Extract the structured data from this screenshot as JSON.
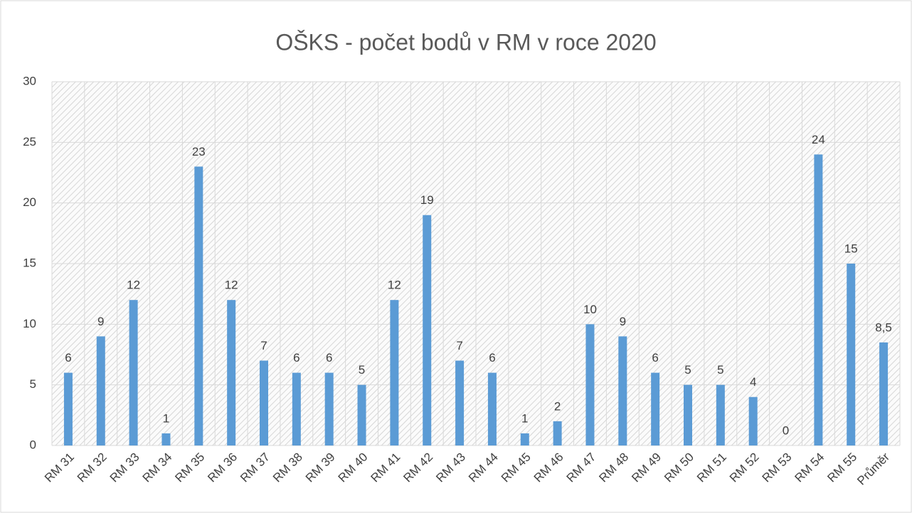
{
  "chart_data": {
    "type": "bar",
    "title": "OŠKS - počet bodů v RM v roce 2020",
    "categories": [
      "RM 31",
      "RM 32",
      "RM 33",
      "RM 34",
      "RM 35",
      "RM 36",
      "RM 37",
      "RM 38",
      "RM 39",
      "RM 40",
      "RM 41",
      "RM 42",
      "RM 43",
      "RM 44",
      "RM 45",
      "RM 46",
      "RM 47",
      "RM 48",
      "RM 49",
      "RM 50",
      "RM 51",
      "RM 52",
      "RM 53",
      "RM 54",
      "RM 55",
      "Průměr"
    ],
    "values": [
      6,
      9,
      12,
      1,
      23,
      12,
      7,
      6,
      6,
      5,
      12,
      19,
      7,
      6,
      1,
      2,
      10,
      9,
      6,
      5,
      5,
      4,
      0,
      24,
      15,
      8.5
    ],
    "value_labels": [
      "6",
      "9",
      "12",
      "1",
      "23",
      "12",
      "7",
      "6",
      "6",
      "5",
      "12",
      "19",
      "7",
      "6",
      "1",
      "2",
      "10",
      "9",
      "6",
      "5",
      "5",
      "4",
      "0",
      "24",
      "15",
      "8,5"
    ],
    "color": "#5b9bd5",
    "ylim": [
      0,
      30
    ],
    "yticks": [
      0,
      5,
      10,
      15,
      20,
      25,
      30
    ],
    "grid": true
  }
}
